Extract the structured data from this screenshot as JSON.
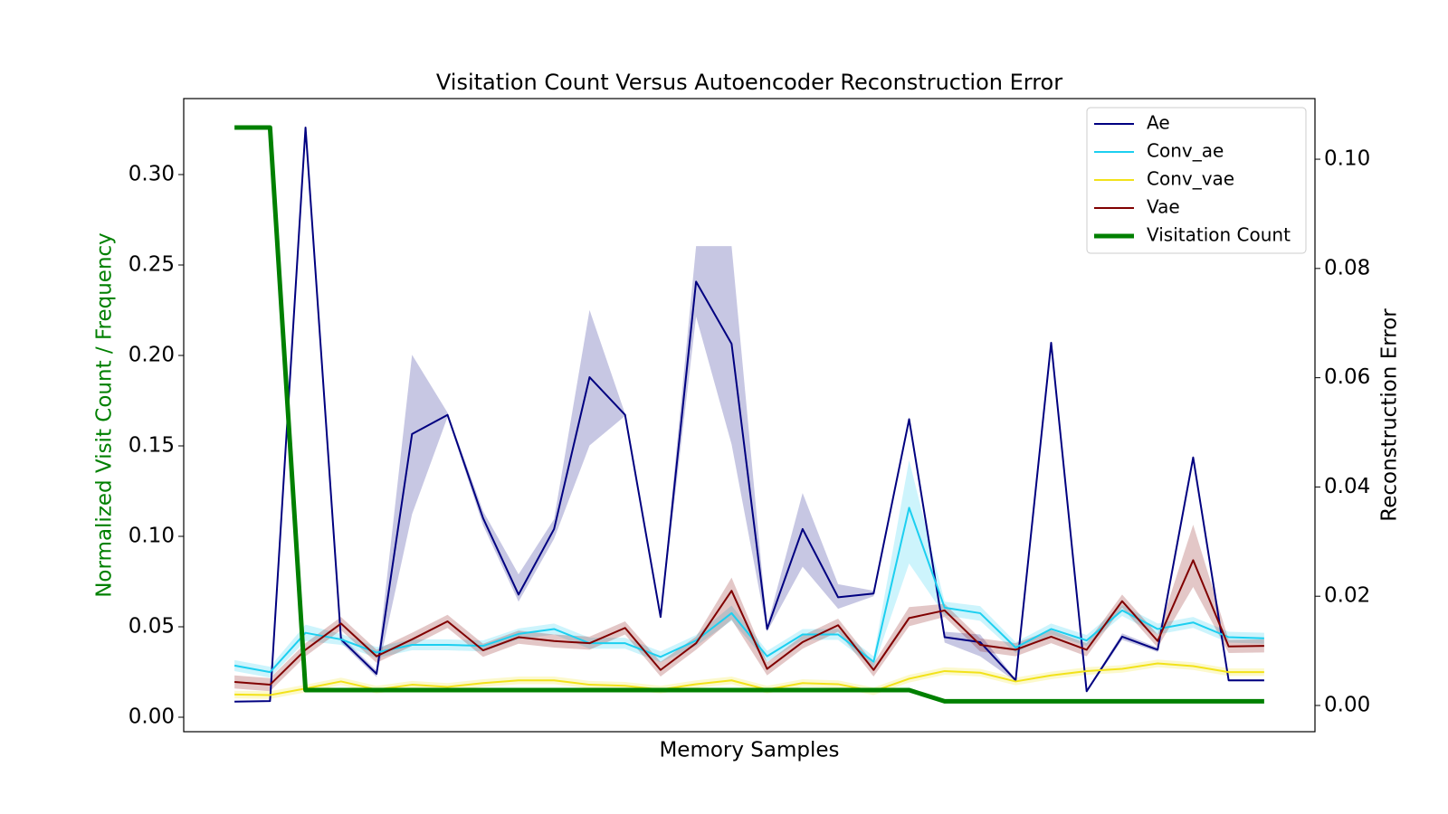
{
  "chart_data": {
    "type": "line",
    "title": "Visitation Count Versus Autoencoder Reconstruction Error",
    "x_label": "Memory Samples",
    "y_label": "Normalized Visit Count / Frequency",
    "y2_label": "Reconstruction Error",
    "y_label_color": "#008000",
    "categories": [
      null,
      null,
      null,
      null,
      null,
      null,
      null,
      null,
      null,
      null,
      null,
      null,
      null,
      null,
      null,
      null,
      null,
      null,
      null,
      null,
      null,
      null,
      null,
      null,
      null,
      null,
      null,
      null,
      null,
      null
    ],
    "ylim": [
      -0.008,
      0.342
    ],
    "yticks": [
      {
        "value": 0,
        "label": "0.00"
      },
      {
        "value": 0.05,
        "label": "0.05"
      },
      {
        "value": 0.1,
        "label": "0.10"
      },
      {
        "value": 0.15,
        "label": "0.15"
      },
      {
        "value": 0.2,
        "label": "0.20"
      },
      {
        "value": 0.25,
        "label": "0.25"
      },
      {
        "value": 0.3,
        "label": "0.30"
      }
    ],
    "y2lim": [
      -0.0048,
      0.1111
    ],
    "y2ticks": [
      {
        "value": 0,
        "label": "0.00"
      },
      {
        "value": 0.02,
        "label": "0.02"
      },
      {
        "value": 0.04,
        "label": "0.04"
      },
      {
        "value": 0.06,
        "label": "0.06"
      },
      {
        "value": 0.08,
        "label": "0.08"
      },
      {
        "value": 0.1,
        "label": "0.10"
      }
    ],
    "legend": "upper right",
    "series": [
      {
        "name": "Ae",
        "color": "#000080",
        "axis": "y2",
        "values": [
          0.0007,
          0.0008,
          0.1058,
          0.0121,
          0.0058,
          0.0497,
          0.0532,
          0.0343,
          0.0203,
          0.0323,
          0.0601,
          0.0532,
          0.0162,
          0.0776,
          0.0662,
          0.014,
          0.0323,
          0.0198,
          0.0205,
          0.0524,
          0.0125,
          0.0116,
          0.0046,
          0.0664,
          0.0026,
          0.0126,
          0.0102,
          0.0454,
          0.0046,
          0.0046
        ],
        "lower": [
          0.0006,
          0.0007,
          0.1055,
          0.0115,
          0.0052,
          0.035,
          0.0528,
          0.033,
          0.019,
          0.0305,
          0.0476,
          0.053,
          0.0158,
          0.0712,
          0.0478,
          0.0135,
          0.0254,
          0.0177,
          0.02,
          0.052,
          0.0115,
          0.009,
          0.0044,
          0.066,
          0.0024,
          0.012,
          0.0098,
          0.045,
          0.0044,
          0.0044
        ],
        "upper": [
          0.0008,
          0.0009,
          0.106,
          0.0127,
          0.0064,
          0.0642,
          0.0536,
          0.0356,
          0.024,
          0.0341,
          0.0724,
          0.0534,
          0.0166,
          0.0841,
          0.0841,
          0.0145,
          0.0389,
          0.0222,
          0.021,
          0.0528,
          0.0135,
          0.013,
          0.0048,
          0.0668,
          0.0028,
          0.0132,
          0.0106,
          0.0458,
          0.0048,
          0.0048
        ]
      },
      {
        "name": "Conv_ae",
        "color": "#1ccff0",
        "axis": "y2",
        "values": [
          0.0073,
          0.0061,
          0.0133,
          0.0121,
          0.0097,
          0.0111,
          0.0111,
          0.0109,
          0.0131,
          0.014,
          0.0114,
          0.0114,
          0.0089,
          0.0119,
          0.0169,
          0.009,
          0.013,
          0.013,
          0.008,
          0.0362,
          0.0179,
          0.0169,
          0.0106,
          0.014,
          0.0119,
          0.0174,
          0.014,
          0.0152,
          0.0125,
          0.0123
        ],
        "lower": [
          0.0063,
          0.0051,
          0.0118,
          0.0111,
          0.0087,
          0.0101,
          0.0101,
          0.0099,
          0.0121,
          0.013,
          0.0104,
          0.0104,
          0.0079,
          0.0109,
          0.0155,
          0.008,
          0.012,
          0.012,
          0.007,
          0.026,
          0.0165,
          0.0155,
          0.0096,
          0.013,
          0.0109,
          0.0164,
          0.013,
          0.0142,
          0.0115,
          0.0113
        ],
        "upper": [
          0.0083,
          0.0071,
          0.0148,
          0.0131,
          0.0107,
          0.0121,
          0.0121,
          0.0119,
          0.0141,
          0.015,
          0.0124,
          0.0124,
          0.0099,
          0.0129,
          0.0183,
          0.01,
          0.014,
          0.014,
          0.009,
          0.0449,
          0.019,
          0.0182,
          0.0116,
          0.015,
          0.0129,
          0.0184,
          0.015,
          0.0162,
          0.0135,
          0.0133
        ]
      },
      {
        "name": "Conv_vae",
        "color": "#f2e21a",
        "axis": "y2",
        "values": [
          0.002,
          0.0019,
          0.0031,
          0.0044,
          0.0029,
          0.0038,
          0.0034,
          0.0041,
          0.0046,
          0.0046,
          0.0038,
          0.0036,
          0.0029,
          0.0039,
          0.0046,
          0.0029,
          0.0041,
          0.0039,
          0.0026,
          0.0049,
          0.0063,
          0.006,
          0.0044,
          0.0055,
          0.0063,
          0.0067,
          0.0077,
          0.0072,
          0.0061,
          0.0061
        ],
        "lower": [
          0.0013,
          0.0012,
          0.0024,
          0.0037,
          0.0022,
          0.0031,
          0.0027,
          0.0034,
          0.0039,
          0.0039,
          0.0031,
          0.0029,
          0.0022,
          0.0032,
          0.0039,
          0.0022,
          0.0034,
          0.0032,
          0.0019,
          0.0042,
          0.0056,
          0.0053,
          0.0037,
          0.0048,
          0.0056,
          0.006,
          0.007,
          0.0065,
          0.0054,
          0.0054
        ],
        "upper": [
          0.0027,
          0.0026,
          0.0038,
          0.0051,
          0.0036,
          0.0045,
          0.0041,
          0.0048,
          0.0053,
          0.0053,
          0.0045,
          0.0043,
          0.0036,
          0.0046,
          0.0053,
          0.0036,
          0.0048,
          0.0046,
          0.0033,
          0.0056,
          0.007,
          0.0067,
          0.0051,
          0.0062,
          0.007,
          0.0074,
          0.0084,
          0.0079,
          0.0068,
          0.0068
        ]
      },
      {
        "name": "Vae",
        "color": "#800000",
        "axis": "y2",
        "values": [
          0.0043,
          0.0038,
          0.0102,
          0.015,
          0.009,
          0.0121,
          0.0154,
          0.0101,
          0.0125,
          0.0118,
          0.0114,
          0.0142,
          0.0065,
          0.0114,
          0.021,
          0.0067,
          0.0116,
          0.0147,
          0.0065,
          0.016,
          0.0174,
          0.0111,
          0.0102,
          0.0126,
          0.0102,
          0.0191,
          0.0118,
          0.0266,
          0.0108,
          0.0109
        ],
        "lower": [
          0.0031,
          0.0026,
          0.009,
          0.0138,
          0.0078,
          0.0109,
          0.0142,
          0.0089,
          0.0113,
          0.0106,
          0.0102,
          0.013,
          0.0053,
          0.0102,
          0.0157,
          0.0055,
          0.0104,
          0.0135,
          0.0053,
          0.0145,
          0.0162,
          0.0099,
          0.009,
          0.0114,
          0.009,
          0.0179,
          0.0106,
          0.0217,
          0.0096,
          0.0097
        ],
        "upper": [
          0.0055,
          0.005,
          0.0114,
          0.0162,
          0.0102,
          0.0133,
          0.0166,
          0.0113,
          0.0137,
          0.013,
          0.0126,
          0.0154,
          0.008,
          0.0126,
          0.0234,
          0.0079,
          0.0128,
          0.0159,
          0.0077,
          0.018,
          0.0186,
          0.0123,
          0.0114,
          0.0138,
          0.0114,
          0.0203,
          0.013,
          0.0331,
          0.012,
          0.0121
        ]
      },
      {
        "name": "Visitation Count",
        "color": "#008000",
        "axis": "y",
        "width": 5,
        "values": [
          0.326,
          0.326,
          0.015,
          0.015,
          0.015,
          0.015,
          0.015,
          0.015,
          0.015,
          0.015,
          0.015,
          0.015,
          0.015,
          0.015,
          0.015,
          0.015,
          0.015,
          0.015,
          0.015,
          0.015,
          0.0088,
          0.0088,
          0.0088,
          0.0088,
          0.0088,
          0.0088,
          0.0088,
          0.0088,
          0.0088,
          0.0088
        ]
      }
    ]
  }
}
